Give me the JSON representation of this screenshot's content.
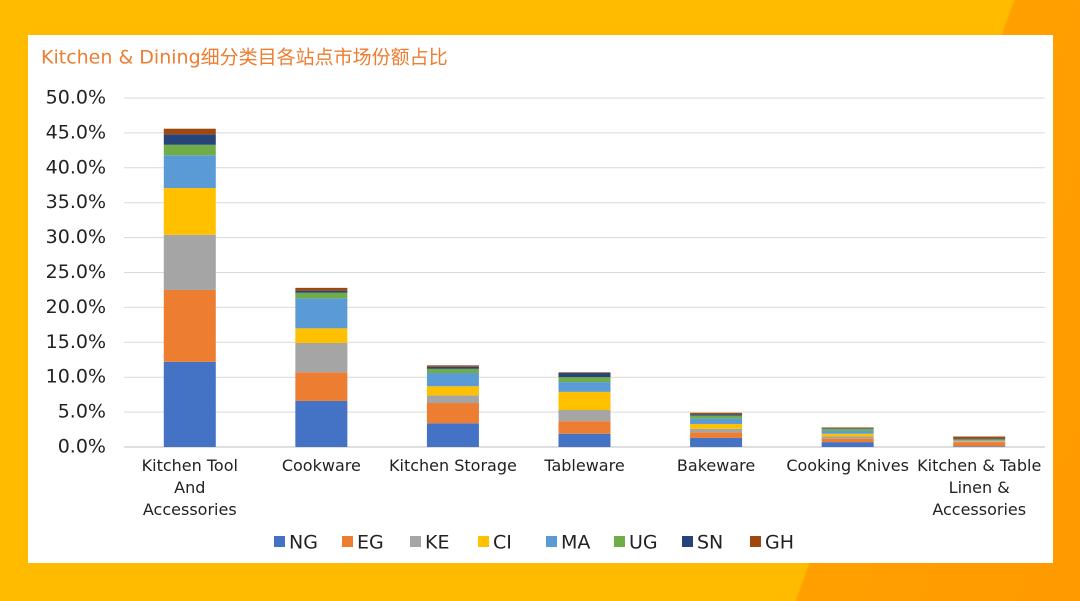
{
  "chart_data": {
    "type": "stacked-bar",
    "title": "Kitchen & Dining细分类目各站点市场份额占比",
    "categories": [
      "Kitchen Tool And Accessories",
      "Cookware",
      "Kitchen Storage",
      "Tableware",
      "Bakeware",
      "Cooking Knives",
      "Kitchen & Table Linen & Accessories"
    ],
    "series": [
      {
        "name": "NG",
        "color": "#4472C4",
        "values": [
          12.2,
          6.6,
          3.4,
          1.9,
          1.3,
          0.7,
          0.1
        ]
      },
      {
        "name": "EG",
        "color": "#ED7D31",
        "values": [
          10.3,
          4.1,
          2.9,
          1.8,
          0.8,
          0.5,
          0.6
        ]
      },
      {
        "name": "KE",
        "color": "#A5A5A5",
        "values": [
          7.9,
          4.2,
          1.1,
          1.6,
          0.5,
          0.3,
          0.1
        ]
      },
      {
        "name": "CI",
        "color": "#FFC000",
        "values": [
          6.7,
          2.1,
          1.3,
          2.6,
          0.7,
          0.4,
          0.1
        ]
      },
      {
        "name": "MA",
        "color": "#5B9BD5",
        "values": [
          4.7,
          4.3,
          1.9,
          1.4,
          0.8,
          0.4,
          0.1
        ]
      },
      {
        "name": "UG",
        "color": "#70AD47",
        "values": [
          1.5,
          0.8,
          0.6,
          0.7,
          0.4,
          0.3,
          0.1
        ]
      },
      {
        "name": "SN",
        "color": "#264478",
        "values": [
          1.5,
          0.3,
          0.3,
          0.6,
          0.2,
          0.1,
          0.1
        ]
      },
      {
        "name": "GH",
        "color": "#9E480E",
        "values": [
          0.8,
          0.4,
          0.2,
          0.1,
          0.2,
          0.1,
          0.3
        ]
      }
    ],
    "ylim": [
      0,
      50
    ],
    "yticks": [
      {
        "value": 0,
        "label": "0.0%"
      },
      {
        "value": 5,
        "label": "5.0%"
      },
      {
        "value": 10,
        "label": "10.0%"
      },
      {
        "value": 15,
        "label": "15.0%"
      },
      {
        "value": 20,
        "label": "20.0%"
      },
      {
        "value": 25,
        "label": "25.0%"
      },
      {
        "value": 30,
        "label": "30.0%"
      },
      {
        "value": 35,
        "label": "35.0%"
      },
      {
        "value": 40,
        "label": "40.0%"
      },
      {
        "value": 45,
        "label": "45.0%"
      },
      {
        "value": 50,
        "label": "50.0%"
      }
    ],
    "grid": true,
    "legend": "bottom"
  }
}
